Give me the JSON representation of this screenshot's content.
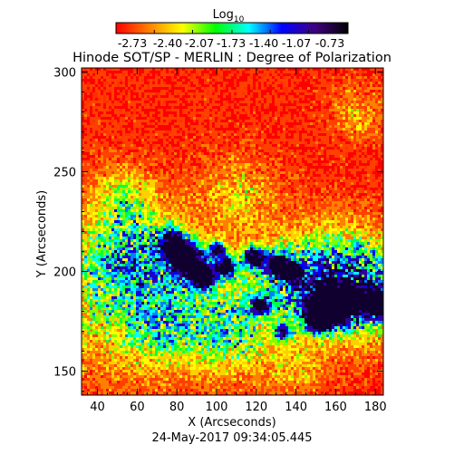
{
  "chart_data": {
    "type": "heatmap",
    "title": "Hinode SOT/SP - MERLIN : Degree of Polarization",
    "colorbar": {
      "label_main": "Log",
      "label_sub": "10",
      "min": -2.73,
      "max": -0.73,
      "ticks": [
        "-2.73",
        "-2.40",
        "-2.07",
        "-1.73",
        "-1.40",
        "-1.07",
        "-0.73"
      ],
      "colors": [
        "#ff0000",
        "#ff8000",
        "#ffff00",
        "#00ff00",
        "#00ffff",
        "#0000ff",
        "#400080",
        "#000000"
      ]
    },
    "xlabel": "X (Arcseconds)",
    "ylabel": "Y (Arcseconds)",
    "xlim": [
      32,
      184
    ],
    "ylim": [
      138,
      302
    ],
    "xticks": [
      40,
      60,
      80,
      100,
      120,
      140,
      160,
      180
    ],
    "yticks": [
      150,
      200,
      250,
      300
    ],
    "date": "24-May-2017 09:34:05.445"
  }
}
